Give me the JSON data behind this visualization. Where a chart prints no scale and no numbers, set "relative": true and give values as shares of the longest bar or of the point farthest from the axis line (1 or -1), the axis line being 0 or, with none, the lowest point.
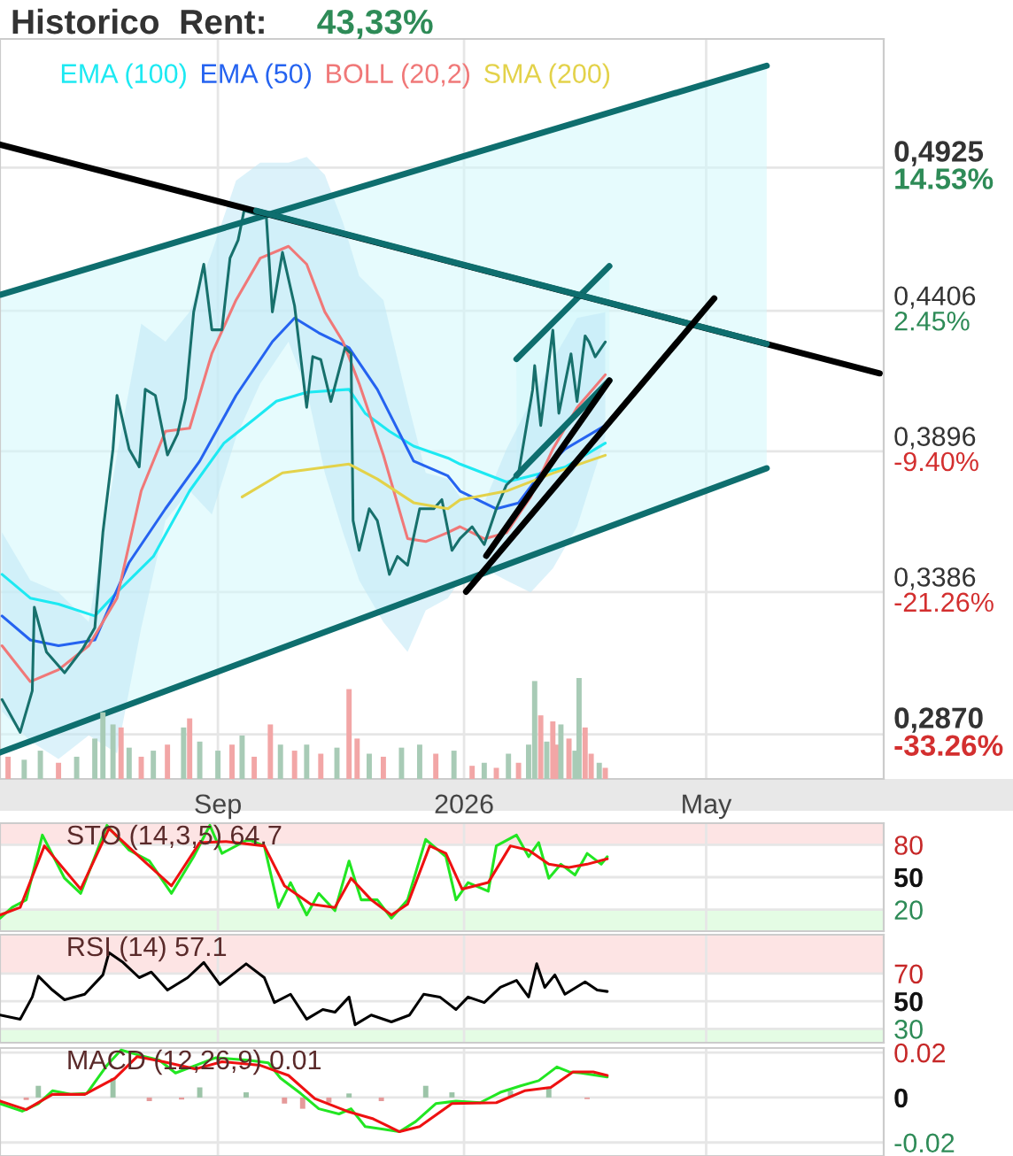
{
  "chart_data": [
    {
      "type": "line",
      "title": "Historico  Rent:",
      "subtitle": "43,33%",
      "xlim": [
        "2025-05-16",
        "2026-07-28"
      ],
      "xticks": [
        {
          "value": "2025-09-01",
          "label": "Sep"
        },
        {
          "value": "2026-01-01",
          "label": "2026"
        },
        {
          "value": "2026-05-01",
          "label": "May"
        }
      ],
      "ylim": [
        0.2708,
        0.5392
      ],
      "yticks": [
        {
          "value": 0.287,
          "label": "0,2870"
        },
        {
          "value": 0.3386,
          "label": "0,3386"
        },
        {
          "value": 0.3896,
          "label": "0,3896"
        },
        {
          "value": 0.4406,
          "label": "0,4406"
        },
        {
          "value": 0.4925,
          "label": "0,4925"
        }
      ],
      "y2lim": [
        -37.03,
        25.38
      ],
      "y2ticks": [
        {
          "value": -33.26,
          "label": "-33.26%"
        },
        {
          "value": -21.26,
          "label": "-21.26%"
        },
        {
          "value": -9.4,
          "label": "-9.40%"
        },
        {
          "value": 2.45,
          "label": "2.45%"
        },
        {
          "value": 14.53,
          "label": "14.53%"
        }
      ],
      "grid": true,
      "legend": "top left",
      "series": [
        {
          "color": "#0e6e6e",
          "x": [
            "2025-05-16",
            "2026-05-31"
          ],
          "values": [
            0.4464,
            0.5295
          ],
          "upper": [
            0.4464,
            0.5295
          ],
          "lower": [
            0.2804,
            0.3835
          ]
        },
        {
          "color": "#0e6e6e",
          "x": [
            "2025-05-16",
            "2026-05-31"
          ],
          "values": [
            0.2804,
            0.3835
          ]
        },
        {
          "color": "#0e6e6e",
          "x": [
            "2026-01-27",
            "2026-03-14"
          ],
          "values": [
            0.4231,
            0.4568
          ],
          "upper": [
            0.4231,
            0.4568
          ],
          "lower": [
            0.3809,
            0.4153
          ]
        },
        {
          "color": "#0e6e6e",
          "x": [
            "2026-01-27",
            "2026-03-14"
          ],
          "values": [
            0.3809,
            0.4153
          ]
        },
        {
          "name": "EMA (100)",
          "color": "#1de9f2",
          "x": [
            "2025-05-17",
            "2025-05-31",
            "2025-06-14",
            "2025-07-02",
            "2025-07-13",
            "2025-07-31",
            "2025-08-18",
            "2025-09-04",
            "2025-09-19",
            "2025-09-30",
            "2025-10-15",
            "2025-11-05",
            "2025-11-13",
            "2025-11-25",
            "2025-12-07",
            "2025-12-24",
            "2025-12-30",
            "2026-01-22",
            "2026-02-03",
            "2026-02-20",
            "2026-03-12"
          ],
          "values": [
            0.345,
            0.3364,
            0.3342,
            0.3299,
            0.3385,
            0.3515,
            0.3753,
            0.3926,
            0.4013,
            0.4078,
            0.411,
            0.4121,
            0.4034,
            0.3969,
            0.3915,
            0.3872,
            0.385,
            0.3785,
            0.3807,
            0.3839,
            0.3926
          ]
        },
        {
          "name": "EMA (50)",
          "color": "#2563f0",
          "x": [
            "2025-05-17",
            "2025-05-31",
            "2025-06-14",
            "2025-07-02",
            "2025-07-19",
            "2025-08-06",
            "2025-08-23",
            "2025-09-10",
            "2025-09-28",
            "2025-10-09",
            "2025-10-21",
            "2025-11-05",
            "2025-11-19",
            "2025-12-07",
            "2025-12-24",
            "2025-12-30",
            "2026-01-17",
            "2026-01-28",
            "2026-02-08",
            "2026-02-20",
            "2026-03-12"
          ],
          "values": [
            0.3299,
            0.3212,
            0.3191,
            0.3212,
            0.3493,
            0.3688,
            0.3861,
            0.4099,
            0.4294,
            0.438,
            0.4326,
            0.4272,
            0.4121,
            0.3861,
            0.3807,
            0.3752,
            0.3688,
            0.3709,
            0.3817,
            0.3904,
            0.399
          ]
        },
        {
          "name": "BOLL (20,2)",
          "color": "#f07878",
          "x": [
            "2025-05-17",
            "2025-05-31",
            "2025-06-14",
            "2025-06-29",
            "2025-07-13",
            "2025-07-25",
            "2025-08-06",
            "2025-08-18",
            "2025-08-29",
            "2025-09-10",
            "2025-09-22",
            "2025-10-06",
            "2025-10-15",
            "2025-10-24",
            "2025-11-02",
            "2025-11-10",
            "2025-11-22",
            "2025-12-04",
            "2025-12-13",
            "2025-12-24",
            "2025-12-30",
            "2026-01-11",
            "2026-01-22",
            "2026-02-03",
            "2026-02-14",
            "2026-02-26",
            "2026-03-12"
          ],
          "values": [
            0.3191,
            0.3061,
            0.3104,
            0.3191,
            0.3364,
            0.3753,
            0.3969,
            0.398,
            0.4251,
            0.4445,
            0.4597,
            0.464,
            0.4575,
            0.4402,
            0.4294,
            0.4142,
            0.3883,
            0.358,
            0.3569,
            0.3602,
            0.3623,
            0.3579,
            0.3601,
            0.3731,
            0.3904,
            0.4055,
            0.4174
          ],
          "upper": [
            0.3602,
            0.3429,
            0.3385,
            0.3277,
            0.3883,
            0.4359,
            0.4294,
            0.4402,
            0.4618,
            0.4878,
            0.4943,
            0.4943,
            0.4964,
            0.4899,
            0.4726,
            0.4532,
            0.4445,
            0.4078,
            0.3818,
            0.3796,
            0.3731,
            0.3709,
            0.3904,
            0.4077,
            0.4228,
            0.438,
            0.4401
          ],
          "lower": [
            0.2953,
            0.2845,
            0.278,
            0.2866,
            0.2801,
            0.3256,
            0.3645,
            0.3753,
            0.3667,
            0.3948,
            0.4142,
            0.4294,
            0.4121,
            0.3818,
            0.3602,
            0.3429,
            0.3277,
            0.3169,
            0.332,
            0.3364,
            0.3428,
            0.3471,
            0.3428,
            0.3385,
            0.3471,
            0.3623,
            0.3947
          ]
        },
        {
          "color": "#17706c",
          "x": [
            "2025-05-17",
            "2025-05-26",
            "2025-06-01",
            "2025-06-02",
            "2025-06-08",
            "2025-06-17",
            "2025-06-26",
            "2025-07-02",
            "2025-07-06",
            "2025-07-11",
            "2025-07-13",
            "2025-07-19",
            "2025-07-24",
            "2025-07-27",
            "2025-08-01",
            "2025-08-07",
            "2025-08-12",
            "2025-08-16",
            "2025-08-20",
            "2025-08-25",
            "2025-08-29",
            "2025-09-03",
            "2025-09-07",
            "2025-09-11",
            "2025-09-14",
            "2025-09-19",
            "2025-09-25",
            "2025-09-28",
            "2025-10-03",
            "2025-10-09",
            "2025-10-15",
            "2025-10-18",
            "2025-10-22",
            "2025-10-27",
            "2025-11-03",
            "2025-11-06",
            "2025-11-07",
            "2025-11-10",
            "2025-11-15",
            "2025-11-19",
            "2025-11-25",
            "2025-11-29",
            "2025-12-04",
            "2025-12-10",
            "2025-12-17",
            "2025-12-21",
            "2025-12-26",
            "2025-12-30",
            "2026-01-05",
            "2026-01-11",
            "2026-01-17",
            "2026-01-22",
            "2026-01-28",
            "2026-02-04",
            "2026-02-05",
            "2026-02-08",
            "2026-02-14",
            "2026-02-17",
            "2026-02-23",
            "2026-02-26",
            "2026-03-02",
            "2026-03-04",
            "2026-03-07",
            "2026-03-12"
          ],
          "values": [
            0.2996,
            0.2877,
            0.3028,
            0.3331,
            0.3169,
            0.3093,
            0.318,
            0.3256,
            0.3602,
            0.3904,
            0.4099,
            0.3904,
            0.384,
            0.4121,
            0.4099,
            0.3883,
            0.3959,
            0.4088,
            0.4402,
            0.4575,
            0.4337,
            0.4337,
            0.4597,
            0.4662,
            0.477,
            0.4759,
            0.4748,
            0.4402,
            0.4618,
            0.4424,
            0.4056,
            0.424,
            0.4229,
            0.4077,
            0.4272,
            0.4251,
            0.3645,
            0.3537,
            0.3688,
            0.3645,
            0.345,
            0.3515,
            0.3483,
            0.3688,
            0.3688,
            0.3721,
            0.3537,
            0.358,
            0.3623,
            0.3558,
            0.3688,
            0.3774,
            0.3817,
            0.412,
            0.4207,
            0.399,
            0.4336,
            0.4034,
            0.425,
            0.4077,
            0.4315,
            0.4293,
            0.4239,
            0.4293
          ]
        },
        {
          "name": "SMA (200)",
          "color": "#e3d24a",
          "x": [
            "2025-09-13",
            "2025-10-03",
            "2025-11-05",
            "2025-11-19",
            "2025-12-07",
            "2025-12-24",
            "2025-12-30",
            "2026-01-22",
            "2026-02-14",
            "2026-03-12"
          ],
          "values": [
            0.3731,
            0.3818,
            0.385,
            0.3796,
            0.371,
            0.3688,
            0.372,
            0.3752,
            0.3817,
            0.3882
          ]
        },
        {
          "color": "#000000",
          "x": [
            "2025-05-16",
            "2026-07-26"
          ],
          "values": [
            0.5009,
            0.4179
          ]
        },
        {
          "color": "#0e6e6e",
          "x": [
            "2025-09-20",
            "2026-05-31"
          ],
          "values": [
            0.4769,
            0.4286
          ]
        },
        {
          "color": "#000000",
          "x": [
            "2026-01-02",
            "2026-05-05"
          ],
          "values": [
            0.3387,
            0.4451
          ]
        },
        {
          "color": "#000000",
          "x": [
            "2026-01-12",
            "2026-03-14"
          ],
          "values": [
            0.3517,
            0.4153
          ]
        }
      ]
    },
    {
      "type": "bar",
      "relative": true,
      "tick_labels": false,
      "xlim": [
        "2025-05-16",
        "2026-07-28"
      ],
      "x": [
        "2025-05-20",
        "2025-05-28",
        "2025-06-05",
        "2025-06-14",
        "2025-06-23",
        "2025-07-02",
        "2025-07-06",
        "2025-07-11",
        "2025-07-15",
        "2025-07-19",
        "2025-07-25",
        "2025-07-31",
        "2025-08-07",
        "2025-08-15",
        "2025-08-18",
        "2025-08-23",
        "2025-09-01",
        "2025-09-08",
        "2025-09-13",
        "2025-09-19",
        "2025-09-27",
        "2025-10-02",
        "2025-10-09",
        "2025-10-15",
        "2025-10-22",
        "2025-10-30",
        "2025-11-05",
        "2025-11-09",
        "2025-11-15",
        "2025-11-22",
        "2025-12-01",
        "2025-12-10",
        "2025-12-18",
        "2025-12-27",
        "2026-01-05",
        "2026-01-11",
        "2026-01-17",
        "2026-01-23",
        "2026-01-28",
        "2026-02-02",
        "2026-02-05",
        "2026-02-08",
        "2026-02-11",
        "2026-02-14",
        "2026-02-16",
        "2026-02-18",
        "2026-02-22",
        "2026-02-25",
        "2026-02-27",
        "2026-03-02",
        "2026-03-05",
        "2026-03-09",
        "2026-03-12"
      ],
      "values": [
        0.22,
        0.19,
        0.28,
        0.16,
        0.22,
        0.4,
        0.66,
        0.54,
        0.51,
        0.31,
        0.22,
        0.28,
        0.34,
        0.51,
        0.6,
        0.37,
        0.28,
        0.34,
        0.43,
        0.22,
        0.54,
        0.34,
        0.28,
        0.34,
        0.25,
        0.31,
        0.89,
        0.4,
        0.25,
        0.22,
        0.31,
        0.34,
        0.25,
        0.28,
        0.13,
        0.16,
        0.11,
        0.25,
        0.16,
        0.34,
        0.97,
        0.63,
        0.37,
        0.57,
        0.34,
        0.54,
        0.4,
        0.28,
        1,
        0.51,
        0.25,
        0.16,
        0.11
      ],
      "colors": [
        "#f2a6a6",
        "#a8cbb6",
        "#a8cbb6",
        "#f2a6a6",
        "#a8cbb6",
        "#a8cbb6",
        "#a8cbb6",
        "#a8cbb6",
        "#f2a6a6",
        "#a8cbb6",
        "#f2a6a6",
        "#a8cbb6",
        "#f2a6a6",
        "#a8cbb6",
        "#f2a6a6",
        "#a8cbb6",
        "#a8cbb6",
        "#f2a6a6",
        "#a8cbb6",
        "#f2a6a6",
        "#f2a6a6",
        "#a8cbb6",
        "#f2a6a6",
        "#a8cbb6",
        "#f2a6a6",
        "#a8cbb6",
        "#f2a6a6",
        "#f2a6a6",
        "#a8cbb6",
        "#f2a6a6",
        "#a8cbb6",
        "#a8cbb6",
        "#f2a6a6",
        "#a8cbb6",
        "#f2a6a6",
        "#a8cbb6",
        "#f2a6a6",
        "#a8cbb6",
        "#f2a6a6",
        "#a8cbb6",
        "#a8cbb6",
        "#f2a6a6",
        "#a8cbb6",
        "#f2a6a6",
        "#f2a6a6",
        "#a8cbb6",
        "#f2a6a6",
        "#a8cbb6",
        "#a8cbb6",
        "#f2a6a6",
        "#f2a6a6",
        "#a8cbb6",
        "#f2a6a6"
      ]
    },
    {
      "type": "line",
      "title": "STO (14,3,5) 64.7",
      "tick_labels": "y",
      "grid": true,
      "xlim": [
        "2025-05-16",
        "2026-07-28"
      ],
      "xticks": [
        {
          "value": "2025-09-01",
          "label": null
        },
        {
          "value": "2026-01-01",
          "label": null
        },
        {
          "value": "2026-05-01",
          "label": null
        }
      ],
      "ylim": [
        0,
        100
      ],
      "yticks": [
        20,
        50,
        80
      ],
      "bands": [
        {
          "axis": "y",
          "from": 80,
          "to": 100,
          "color": "#fde4e4"
        },
        {
          "axis": "y",
          "from": 0,
          "to": 20,
          "color": "#e4fce4"
        }
      ],
      "series": [
        {
          "color": "#22e622",
          "x": [
            "2025-05-16",
            "2025-05-22",
            "2025-05-29",
            "2025-06-06",
            "2025-06-17",
            "2025-06-25",
            "2025-07-08",
            "2025-07-19",
            "2025-07-29",
            "2025-08-09",
            "2025-08-20",
            "2025-08-28",
            "2025-09-03",
            "2025-09-16",
            "2025-09-24",
            "2025-10-01",
            "2025-10-07",
            "2025-10-15",
            "2025-10-21",
            "2025-10-29",
            "2025-11-05",
            "2025-11-11",
            "2025-11-19",
            "2025-11-26",
            "2025-12-04",
            "2025-12-13",
            "2025-12-23",
            "2025-12-28",
            "2026-01-03",
            "2026-01-13",
            "2026-01-17",
            "2026-01-27",
            "2026-02-02",
            "2026-02-07",
            "2026-02-12",
            "2026-02-18",
            "2026-02-25",
            "2026-03-03",
            "2026-03-10",
            "2026-03-13"
          ],
          "values": [
            12,
            22,
            29,
            89,
            49,
            35,
            98,
            75,
            65,
            35,
            69,
            98,
            72,
            85,
            79,
            22,
            45,
            15,
            35,
            19,
            65,
            29,
            29,
            12,
            29,
            85,
            69,
            29,
            45,
            37,
            79,
            89,
            69,
            82,
            49,
            62,
            52,
            72,
            62,
            69
          ]
        },
        {
          "color": "#ee1111",
          "x": [
            "2025-05-16",
            "2025-05-26",
            "2025-06-07",
            "2025-06-25",
            "2025-07-09",
            "2025-07-24",
            "2025-08-09",
            "2025-08-23",
            "2025-09-05",
            "2025-09-24",
            "2025-10-04",
            "2025-10-17",
            "2025-10-29",
            "2025-11-06",
            "2025-11-16",
            "2025-11-26",
            "2025-12-04",
            "2025-12-15",
            "2025-12-23",
            "2025-12-31",
            "2026-01-13",
            "2026-01-24",
            "2026-02-02",
            "2026-02-12",
            "2026-02-22",
            "2026-03-03",
            "2026-03-13"
          ],
          "values": [
            15,
            22,
            79,
            39,
            95,
            69,
            42,
            82,
            83,
            79,
            42,
            25,
            22,
            49,
            29,
            15,
            25,
            79,
            72,
            39,
            45,
            79,
            75,
            62,
            59,
            62,
            67
          ]
        }
      ]
    },
    {
      "type": "line",
      "title": "RSI (14) 57.1",
      "tick_labels": "y",
      "grid": true,
      "xlim": [
        "2025-05-16",
        "2026-07-28"
      ],
      "xticks": [
        {
          "value": "2025-09-01",
          "label": null
        },
        {
          "value": "2026-01-01",
          "label": null
        },
        {
          "value": "2026-05-01",
          "label": null
        }
      ],
      "ylim": [
        20,
        98
      ],
      "yticks": [
        30,
        50,
        70
      ],
      "bands": [
        {
          "axis": "y",
          "from": 70,
          "to": 98,
          "color": "#fde4e4"
        },
        {
          "axis": "y",
          "from": 20,
          "to": 30,
          "color": "#e4fce4"
        }
      ],
      "series": [
        {
          "color": "#000000",
          "x": [
            "2025-05-16",
            "2025-05-26",
            "2025-06-01",
            "2025-06-04",
            "2025-06-11",
            "2025-06-17",
            "2025-06-27",
            "2025-07-06",
            "2025-07-09",
            "2025-07-16",
            "2025-07-24",
            "2025-07-30",
            "2025-08-07",
            "2025-08-17",
            "2025-08-25",
            "2025-09-02",
            "2025-09-15",
            "2025-09-24",
            "2025-09-29",
            "2025-10-07",
            "2025-10-15",
            "2025-10-23",
            "2025-10-29",
            "2025-11-05",
            "2025-11-08",
            "2025-11-16",
            "2025-11-26",
            "2025-12-05",
            "2025-12-12",
            "2025-12-20",
            "2025-12-28",
            "2026-01-03",
            "2026-01-11",
            "2026-01-19",
            "2026-01-27",
            "2026-02-02",
            "2026-02-06",
            "2026-02-10",
            "2026-02-15",
            "2026-02-20",
            "2026-03-02",
            "2026-03-08",
            "2026-03-13"
          ],
          "values": [
            40,
            37,
            53,
            68,
            58,
            51,
            55,
            69,
            85,
            78,
            67,
            71,
            58,
            67,
            78,
            62,
            77,
            67,
            49,
            55,
            37,
            44,
            42,
            53,
            33,
            40,
            35,
            40,
            55,
            53,
            44,
            53,
            49,
            60,
            65,
            53,
            77,
            60,
            69,
            55,
            64,
            58,
            57
          ]
        }
      ]
    },
    {
      "type": "line",
      "title": "MACD (12,26,9) 0.01",
      "tick_labels": "y",
      "grid": true,
      "xlim": [
        "2025-05-16",
        "2026-07-28"
      ],
      "xticks": [
        {
          "value": "2025-09-01",
          "label": null
        },
        {
          "value": "2026-01-01",
          "label": null
        },
        {
          "value": "2026-05-01",
          "label": null
        }
      ],
      "ylim": [
        -0.026,
        0.022
      ],
      "yticks": [
        -0.02,
        0,
        0.02
      ],
      "series": [
        {
          "type": "bar",
          "x": [
            "2025-05-29",
            "2025-06-04",
            "2025-07-11",
            "2025-07-29",
            "2025-08-14",
            "2025-08-23",
            "2025-09-15",
            "2025-10-04",
            "2025-10-13",
            "2025-10-26",
            "2025-11-05",
            "2025-11-21",
            "2025-12-13",
            "2025-12-26",
            "2026-01-24",
            "2026-02-12",
            "2026-03-03"
          ],
          "values": [
            -0.0011,
            0.0052,
            0.0086,
            -0.0016,
            -0.0009,
            0.0045,
            0.0023,
            -0.0027,
            -0.005,
            -0.0023,
            0.0018,
            -0.0016,
            0.0052,
            0.0023,
            0.003,
            0.0045,
            -0.0007
          ],
          "colors": [
            "#e59a9a",
            "#9cc4a8",
            "#9cc4a8",
            "#e59a9a",
            "#e59a9a",
            "#9cc4a8",
            "#9cc4a8",
            "#e59a9a",
            "#e59a9a",
            "#e59a9a",
            "#9cc4a8",
            "#e59a9a",
            "#9cc4a8",
            "#9cc4a8",
            "#9cc4a8",
            "#9cc4a8",
            "#e59a9a"
          ]
        },
        {
          "color": "#22e622",
          "x": [
            "2025-05-16",
            "2025-05-27",
            "2025-06-04",
            "2025-06-11",
            "2025-06-20",
            "2025-06-28",
            "2025-07-08",
            "2025-07-15",
            "2025-07-24",
            "2025-08-03",
            "2025-08-11",
            "2025-08-21",
            "2025-08-31",
            "2025-09-16",
            "2025-09-26",
            "2025-10-02",
            "2025-10-12",
            "2025-10-21",
            "2025-10-31",
            "2025-11-06",
            "2025-11-13",
            "2025-11-22",
            "2025-11-30",
            "2025-12-08",
            "2025-12-18",
            "2025-12-28",
            "2026-01-09",
            "2026-01-19",
            "2026-01-29",
            "2026-02-07",
            "2026-02-16",
            "2026-02-22",
            "2026-02-28",
            "2026-03-13"
          ],
          "values": [
            -0.0027,
            -0.0061,
            -0.0027,
            0.003,
            0.0014,
            0.0018,
            0.0143,
            0.0211,
            0.0188,
            0.0166,
            0.0109,
            0.0143,
            0.0177,
            0.0166,
            0.0154,
            0.0086,
            0.0018,
            -0.005,
            -0.0073,
            -0.005,
            -0.0129,
            -0.0141,
            -0.0152,
            -0.0107,
            -0.0027,
            -0.0016,
            -0.0023,
            0.0023,
            0.0052,
            0.0075,
            0.0136,
            0.0114,
            0.0109,
            0.0091
          ]
        },
        {
          "color": "#ee1111",
          "x": [
            "2025-05-16",
            "2025-05-29",
            "2025-06-11",
            "2025-06-27",
            "2025-07-12",
            "2025-07-23",
            "2025-08-05",
            "2025-08-21",
            "2025-09-03",
            "2025-09-22",
            "2025-10-06",
            "2025-10-19",
            "2025-11-04",
            "2025-11-17",
            "2025-11-30",
            "2025-12-10",
            "2025-12-26",
            "2026-01-17",
            "2026-01-31",
            "2026-02-13",
            "2026-02-24",
            "2026-03-06",
            "2026-03-13"
          ],
          "values": [
            -0.0016,
            -0.0054,
            0.0014,
            0.0014,
            0.0086,
            0.0182,
            0.0159,
            0.0127,
            0.0159,
            0.0143,
            0.0098,
            -0.0005,
            -0.0061,
            -0.0095,
            -0.0152,
            -0.0129,
            -0.0027,
            -0.0023,
            0.003,
            0.0045,
            0.0114,
            0.0114,
            0.0098
          ]
        }
      ]
    }
  ]
}
